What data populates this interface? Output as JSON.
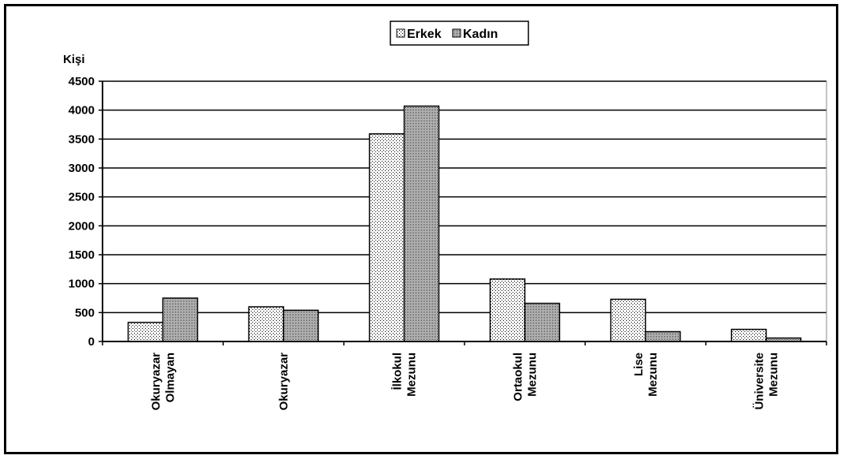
{
  "chart_data": {
    "type": "bar",
    "ylabel": "Kişi",
    "ylim": [
      0,
      4500
    ],
    "yticks": [
      0,
      500,
      1000,
      1500,
      2000,
      2500,
      3000,
      3500,
      4000,
      4500
    ],
    "grid": true,
    "legend_position": "top-center",
    "categories": [
      [
        "Okuryazar",
        "Olmayan"
      ],
      [
        "Okuryazar"
      ],
      [
        "İlkokul",
        "Mezunu"
      ],
      [
        "Ortaokul",
        "Mezunu"
      ],
      [
        "Lise",
        "Mezunu"
      ],
      [
        "Üniversite",
        "Mezunu"
      ]
    ],
    "series": [
      {
        "name": "Erkek",
        "values": [
          330,
          600,
          3590,
          1080,
          730,
          210
        ],
        "pattern": "dots-sparse"
      },
      {
        "name": "Kadın",
        "values": [
          750,
          540,
          4070,
          660,
          170,
          60
        ],
        "pattern": "dots-dense"
      }
    ]
  }
}
